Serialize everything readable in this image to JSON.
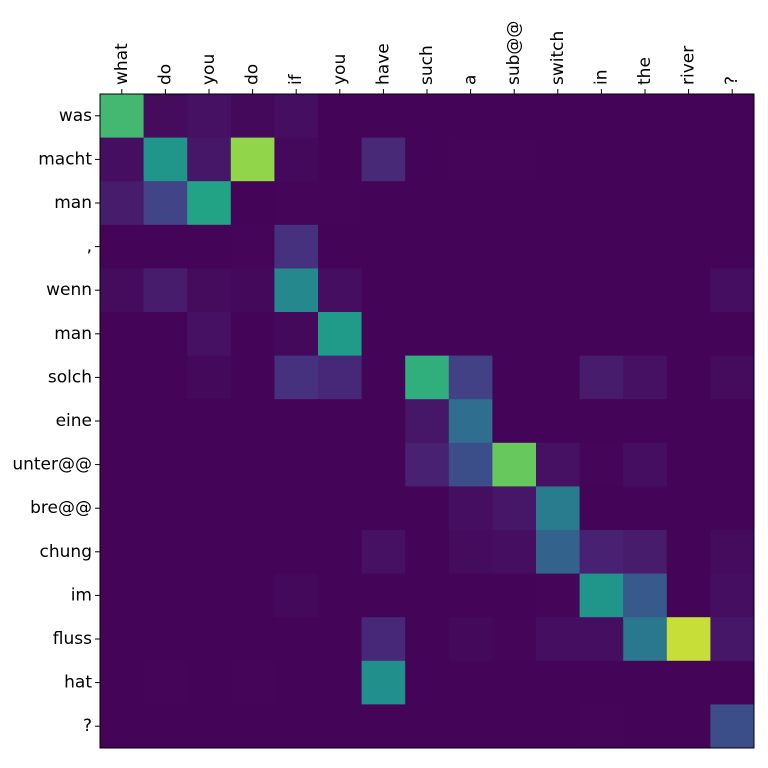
{
  "chart_data": {
    "type": "heatmap",
    "title": "",
    "xlabel": "",
    "ylabel": "",
    "colormap": "viridis",
    "value_range": [
      0,
      1
    ],
    "x_labels": [
      "what",
      "do",
      "you",
      "do",
      "if",
      "you",
      "have",
      "such",
      "a",
      "sub@@",
      "switch",
      "in",
      "the",
      "river",
      "?"
    ],
    "y_labels": [
      "was",
      "macht",
      "man",
      ",",
      "wenn",
      "man",
      "solch",
      "eine",
      "unter@@",
      "bre@@",
      "chung",
      "im",
      "fluss",
      "hat",
      "?"
    ],
    "values": [
      [
        0.8,
        0.04,
        0.06,
        0.03,
        0.05,
        0.01,
        0.01,
        0.01,
        0.01,
        0.01,
        0.01,
        0.01,
        0.01,
        0.01,
        0.01
      ],
      [
        0.05,
        0.65,
        0.08,
        0.9,
        0.03,
        0.01,
        0.15,
        0.01,
        0.02,
        0.02,
        0.01,
        0.01,
        0.01,
        0.01,
        0.01
      ],
      [
        0.1,
        0.25,
        0.72,
        0.01,
        0.02,
        0.02,
        0.01,
        0.01,
        0.01,
        0.01,
        0.01,
        0.01,
        0.01,
        0.01,
        0.01
      ],
      [
        0.01,
        0.01,
        0.01,
        0.02,
        0.18,
        0.01,
        0.01,
        0.01,
        0.01,
        0.01,
        0.01,
        0.01,
        0.01,
        0.01,
        0.01
      ],
      [
        0.04,
        0.1,
        0.04,
        0.03,
        0.58,
        0.05,
        0.01,
        0.01,
        0.01,
        0.01,
        0.01,
        0.01,
        0.01,
        0.01,
        0.05
      ],
      [
        0.01,
        0.01,
        0.06,
        0.01,
        0.03,
        0.68,
        0.01,
        0.01,
        0.01,
        0.01,
        0.01,
        0.01,
        0.01,
        0.01,
        0.01
      ],
      [
        0.01,
        0.01,
        0.03,
        0.01,
        0.18,
        0.14,
        0.01,
        0.77,
        0.24,
        0.01,
        0.01,
        0.1,
        0.06,
        0.01,
        0.04
      ],
      [
        0.01,
        0.01,
        0.01,
        0.01,
        0.01,
        0.01,
        0.01,
        0.08,
        0.45,
        0.01,
        0.01,
        0.01,
        0.01,
        0.01,
        0.01
      ],
      [
        0.01,
        0.01,
        0.01,
        0.01,
        0.01,
        0.01,
        0.01,
        0.12,
        0.3,
        0.85,
        0.06,
        0.02,
        0.05,
        0.01,
        0.01
      ],
      [
        0.01,
        0.01,
        0.01,
        0.01,
        0.01,
        0.01,
        0.01,
        0.01,
        0.05,
        0.08,
        0.52,
        0.01,
        0.01,
        0.01,
        0.01
      ],
      [
        0.01,
        0.01,
        0.01,
        0.01,
        0.01,
        0.01,
        0.06,
        0.01,
        0.04,
        0.05,
        0.4,
        0.12,
        0.1,
        0.01,
        0.04
      ],
      [
        0.01,
        0.01,
        0.01,
        0.01,
        0.03,
        0.01,
        0.01,
        0.01,
        0.01,
        0.01,
        0.02,
        0.65,
        0.35,
        0.01,
        0.05
      ],
      [
        0.01,
        0.01,
        0.01,
        0.01,
        0.01,
        0.01,
        0.14,
        0.01,
        0.03,
        0.02,
        0.05,
        0.05,
        0.5,
        0.95,
        0.08
      ],
      [
        0.01,
        0.02,
        0.01,
        0.02,
        0.01,
        0.01,
        0.62,
        0.01,
        0.01,
        0.01,
        0.01,
        0.01,
        0.01,
        0.01,
        0.01
      ],
      [
        0.01,
        0.01,
        0.01,
        0.01,
        0.01,
        0.01,
        0.01,
        0.01,
        0.01,
        0.01,
        0.01,
        0.02,
        0.01,
        0.01,
        0.3
      ]
    ],
    "grid": false,
    "legend": "none"
  }
}
